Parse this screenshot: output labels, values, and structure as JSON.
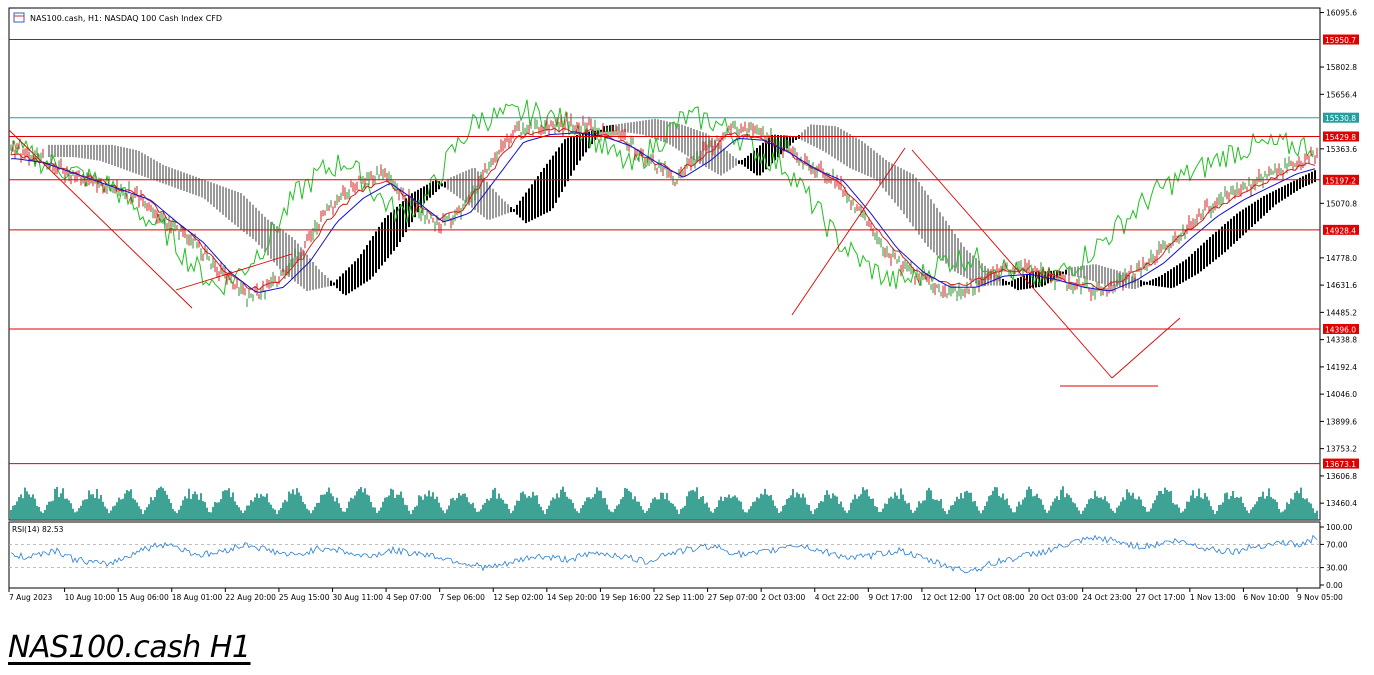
{
  "window": {
    "symbol_title": "NAS100.cash, H1:  NASDAQ 100 Cash Index CFD",
    "caption": "NAS100.cash H1"
  },
  "colors": {
    "price_bull": "#2f8f2f",
    "price_bear": "#d02020",
    "ma_blue": "#1010d0",
    "chikou_green": "#20c020",
    "hline_red": "#e00000",
    "hline_teal": "#20a0a0",
    "volume": "#0e8a7a",
    "rsi_line": "#2a7fd4",
    "axis": "#000000",
    "cloud_black": "#000000",
    "cloud_grey": "#9a9a9a"
  },
  "chart_data": [
    {
      "type": "line",
      "title": "NAS100.cash, H1:  NASDAQ 100 Cash Index CFD",
      "x_tick_labels": [
        "7 Aug 2023",
        "10 Aug 10:00",
        "15 Aug 06:00",
        "18 Aug 01:00",
        "22 Aug 20:00",
        "25 Aug 15:00",
        "30 Aug 11:00",
        "4 Sep 07:00",
        "7 Sep 06:00",
        "12 Sep 02:00",
        "14 Sep 20:00",
        "19 Sep 16:00",
        "22 Sep 11:00",
        "27 Sep 07:00",
        "2 Oct 03:00",
        "4 Oct 22:00",
        "9 Oct 17:00",
        "12 Oct 12:00",
        "17 Oct 08:00",
        "20 Oct 03:00",
        "24 Oct 23:00",
        "27 Oct 17:00",
        "1 Nov 13:00",
        "6 Nov 10:00",
        "9 Nov 05:00"
      ],
      "y_tick_labels": [
        "16095.6",
        "15802.8",
        "15656.4",
        "15363.6",
        "15070.8",
        "14778.0",
        "14631.6",
        "14485.2",
        "14338.8",
        "14192.4",
        "14046.0",
        "13899.6",
        "13753.2",
        "13606.8",
        "13460.4"
      ],
      "ylim": [
        13370,
        16120
      ],
      "x": [
        0,
        10,
        20,
        30,
        40,
        50,
        60,
        70,
        80,
        90,
        100,
        110,
        120,
        130,
        140,
        150,
        160,
        170,
        180,
        190,
        200,
        210,
        220,
        230,
        240,
        250,
        260,
        270,
        280,
        290,
        300,
        310,
        320,
        330,
        340,
        350,
        360,
        370,
        380,
        390,
        400,
        410,
        420,
        430,
        440,
        450,
        460,
        470,
        480,
        490
      ],
      "series": [
        {
          "role": "price",
          "values": [
            15360,
            15330,
            15250,
            15200,
            15150,
            15100,
            14960,
            14860,
            14690,
            14560,
            14650,
            14820,
            15050,
            15180,
            15240,
            15080,
            14950,
            15020,
            15270,
            15460,
            15480,
            15500,
            15470,
            15420,
            15300,
            15200,
            15340,
            15470,
            15460,
            15380,
            15270,
            15200,
            15000,
            14800,
            14680,
            14590,
            14610,
            14700,
            14720,
            14680,
            14620,
            14600,
            14680,
            14790,
            14920,
            15050,
            15140,
            15200,
            15280,
            15320
          ]
        },
        {
          "role": "tenkan",
          "values": [
            15330,
            15310,
            15260,
            15210,
            15160,
            15110,
            14990,
            14880,
            14720,
            14610,
            14640,
            14780,
            14990,
            15120,
            15200,
            15100,
            14990,
            15040,
            15230,
            15420,
            15460,
            15470,
            15450,
            15400,
            15310,
            15230,
            15320,
            15440,
            15430,
            15360,
            15270,
            15210,
            15040,
            14850,
            14720,
            14640,
            14640,
            14700,
            14710,
            14680,
            14640,
            14620,
            14680,
            14770,
            14900,
            15020,
            15110,
            15180,
            15250,
            15290
          ]
        }
      ],
      "horizontal_levels": [
        {
          "value": 15950.7,
          "label": "15950.7"
        },
        {
          "value": 15530.8,
          "label": "15530.8"
        },
        {
          "value": 15429.8,
          "label": "15429.8"
        },
        {
          "value": 15197.2,
          "label": "15197.2"
        },
        {
          "value": 14928.4,
          "label": "14928.4"
        },
        {
          "value": 14396.0,
          "label": "14396.0"
        },
        {
          "value": 13673.1,
          "label": "13673.1"
        }
      ],
      "grid": false
    },
    {
      "type": "line",
      "title": "RSI(14) 82.53",
      "y_tick_labels": [
        "100.00",
        "70.00",
        "30.00",
        "0.00"
      ],
      "ylim": [
        0,
        100
      ],
      "levels": [
        70,
        30
      ],
      "values": [
        52,
        48,
        55,
        60,
        45,
        40,
        35,
        44,
        58,
        66,
        72,
        60,
        52,
        55,
        64,
        70,
        62,
        55,
        50,
        60,
        65,
        58,
        50,
        52,
        60,
        56,
        54,
        48,
        42,
        35,
        30,
        34,
        42,
        50,
        47,
        44,
        50,
        55,
        52,
        46,
        40,
        52,
        58,
        62,
        68,
        60,
        52,
        54,
        60,
        70,
        66,
        58,
        52,
        46,
        50,
        56,
        60,
        48,
        40,
        32,
        24,
        30,
        40,
        46,
        52,
        58,
        66,
        74,
        80,
        78,
        72,
        66,
        70,
        76,
        72,
        64,
        60,
        58,
        66,
        70,
        74,
        68,
        82
      ]
    }
  ]
}
